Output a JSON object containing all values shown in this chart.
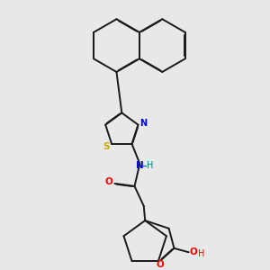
{
  "background_color": "#e8e8e8",
  "bond_color": "#1a1a1a",
  "atom_colors": {
    "N": "#0000ee",
    "O": "#ff0000",
    "S": "#ccaa00",
    "H_N": "#008080",
    "H_O": "#ff0000"
  },
  "figsize": [
    3.0,
    3.0
  ],
  "dpi": 100
}
